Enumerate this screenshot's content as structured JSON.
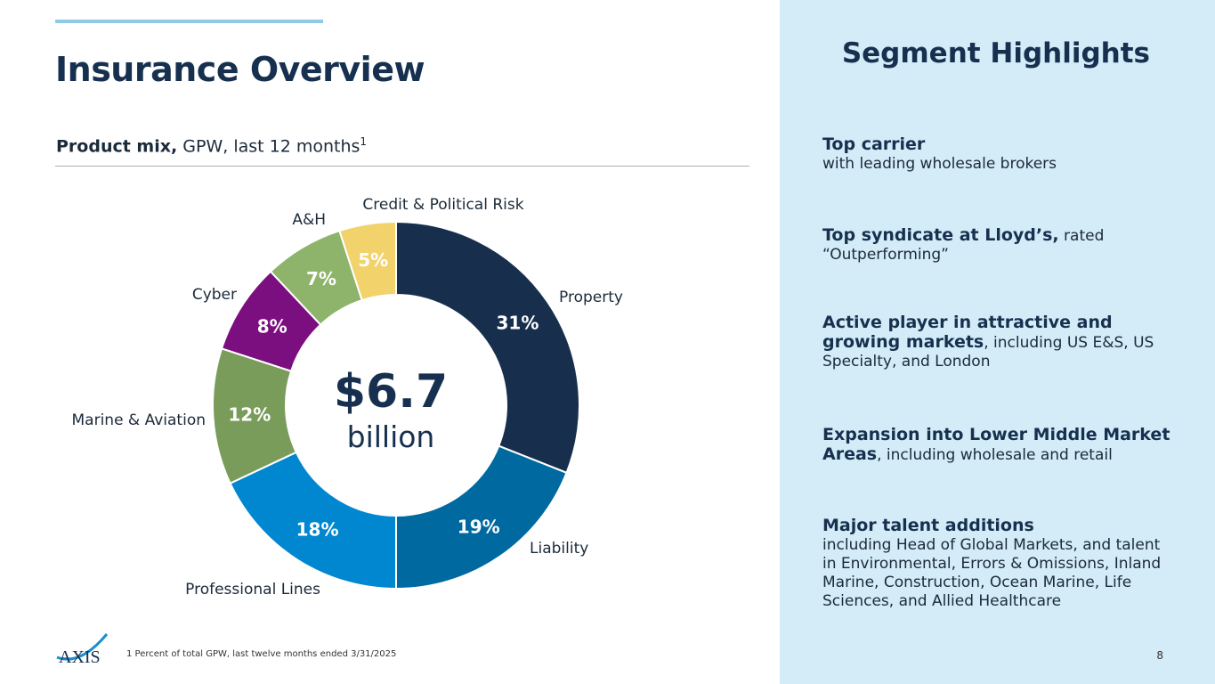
{
  "header": {
    "title": "Insurance Overview",
    "subtitle_bold": "Product mix,",
    "subtitle_rest": " GPW, last 12 months",
    "subtitle_sup": "1"
  },
  "chart_data": {
    "type": "donut",
    "title": "Product mix, GPW, last 12 months",
    "center_value": "$6.7",
    "center_unit": "billion",
    "unit": "%",
    "slices": [
      {
        "name": "Property",
        "value": 31,
        "label": "31%",
        "color": "#172f4d"
      },
      {
        "name": "Liability",
        "value": 19,
        "label": "19%",
        "color": "#006aa0"
      },
      {
        "name": "Professional Lines",
        "value": 18,
        "label": "18%",
        "color": "#0087d0"
      },
      {
        "name": "Marine & Aviation",
        "value": 12,
        "label": "12%",
        "color": "#7a9c5a"
      },
      {
        "name": "Cyber",
        "value": 8,
        "label": "8%",
        "color": "#7b0f7f"
      },
      {
        "name": "A&H",
        "value": 7,
        "label": "7%",
        "color": "#8db46a"
      },
      {
        "name": "Credit & Political Risk",
        "value": 5,
        "label": "5%",
        "color": "#f1d26b"
      }
    ]
  },
  "panel": {
    "title": "Segment Highlights",
    "highlights": [
      {
        "bold": "Top carrier",
        "rest": "with leading wholesale brokers"
      },
      {
        "bold": "Top syndicate at Lloyd’s,",
        "rest": " rated “Outperforming”"
      },
      {
        "bold": "Active player in attractive and growing markets",
        "rest": ", including US E&S, US Specialty, and London"
      },
      {
        "bold": "Expansion into Lower Middle Market Areas",
        "rest": ", including wholesale and retail"
      },
      {
        "bold": "Major talent additions",
        "rest": "including Head of Global Markets, and talent in Environmental, Errors & Omissions, Inland Marine, Construction, Ocean Marine, Life Sciences, and Allied Healthcare"
      }
    ]
  },
  "footer": {
    "footnote": "1  Percent of total GPW, last twelve months ended 3/31/2025",
    "page_number": "8",
    "logo_text": "AXIS"
  }
}
